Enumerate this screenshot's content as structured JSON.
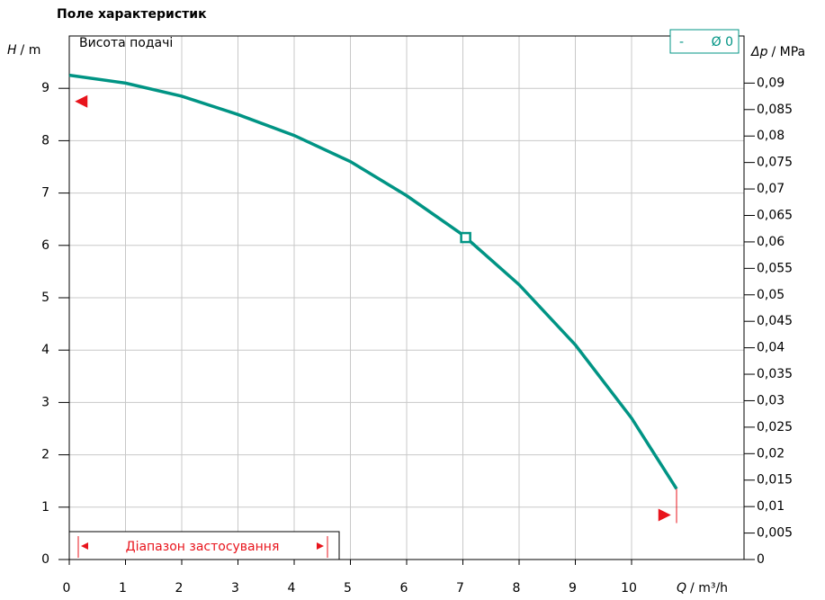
{
  "chart_data": {
    "type": "line",
    "title": "Поле характеристик",
    "y_label_symbol": "H",
    "y_label_unit": "/ m",
    "y2_label_symbol": "Δp",
    "y2_label_unit": "/ MPa",
    "x_label_symbol": "Q",
    "x_label_unit": "/ m³/h",
    "curve_label": "Висота подачі",
    "legend_dash": "-",
    "range_label": "Діапазон застосування",
    "xlim": [
      0,
      12
    ],
    "xticks": [
      0,
      1,
      2,
      3,
      4,
      5,
      6,
      7,
      8,
      9,
      10
    ],
    "ylim": [
      0,
      10
    ],
    "yticks": [
      0,
      1,
      2,
      3,
      4,
      5,
      6,
      7,
      8,
      9
    ],
    "y2lim": [
      0,
      0.0989
    ],
    "y2ticks": [
      0,
      {
        "value": 0.005,
        "label": "0,005"
      },
      {
        "value": 0.01,
        "label": "0,01"
      },
      {
        "value": 0.015,
        "label": "0,015"
      },
      {
        "value": 0.02,
        "label": "0,02"
      },
      {
        "value": 0.025,
        "label": "0,025"
      },
      {
        "value": 0.03,
        "label": "0,03"
      },
      {
        "value": 0.035,
        "label": "0,035"
      },
      {
        "value": 0.04,
        "label": "0,04"
      },
      {
        "value": 0.045,
        "label": "0,045"
      },
      {
        "value": 0.05,
        "label": "0,05"
      },
      {
        "value": 0.055,
        "label": "0,055"
      },
      {
        "value": 0.06,
        "label": "0,06"
      },
      {
        "value": 0.065,
        "label": "0,065"
      },
      {
        "value": 0.07,
        "label": "0,07"
      },
      {
        "value": 0.075,
        "label": "0,075"
      },
      {
        "value": 0.08,
        "label": "0,08"
      },
      {
        "value": 0.085,
        "label": "0,085"
      },
      {
        "value": 0.09,
        "label": "0,09"
      }
    ],
    "grid": true,
    "series": [
      {
        "name": "Ø 0",
        "color": "#009484",
        "x": [
          0,
          1,
          2,
          3,
          4,
          5,
          6,
          7,
          8,
          9,
          10,
          10.8
        ],
        "values": [
          9.25,
          9.1,
          8.85,
          8.5,
          8.1,
          7.6,
          6.95,
          6.2,
          5.25,
          4.1,
          2.7,
          1.35
        ]
      }
    ],
    "duty_point": {
      "x": 7.05,
      "y": 6.15
    },
    "range_start": {
      "x": 0.1,
      "y": 8.75
    },
    "range_end": {
      "x": 10.7,
      "y": 0.85
    },
    "range_color": "#e8141c"
  }
}
